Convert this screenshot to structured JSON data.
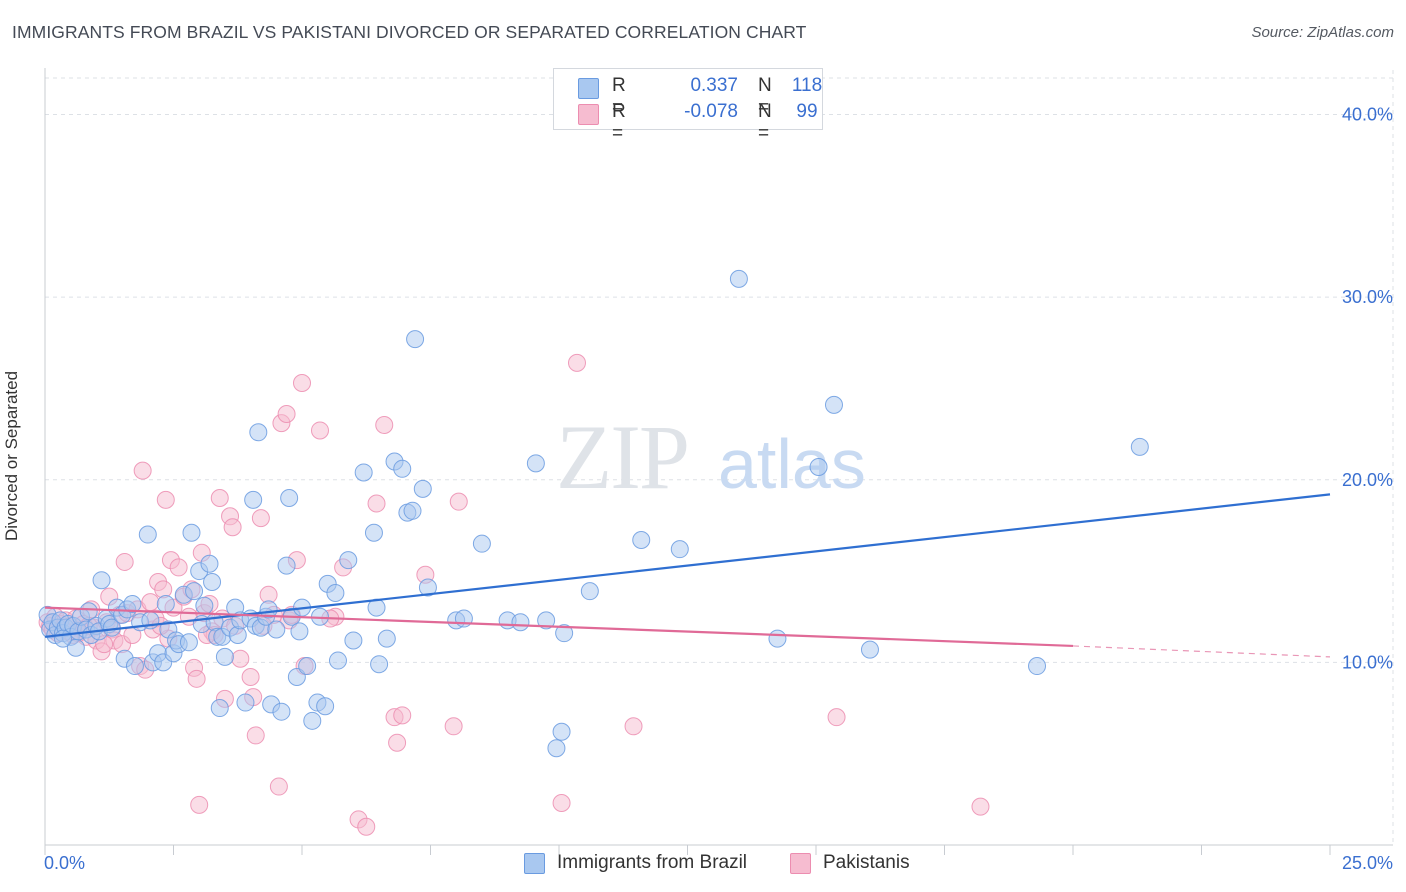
{
  "header": {
    "title": "IMMIGRANTS FROM BRAZIL VS PAKISTANI DIVORCED OR SEPARATED CORRELATION CHART",
    "source": "Source: ZipAtlas.com"
  },
  "watermark": {
    "zip": "ZIP",
    "atlas": "atlas"
  },
  "legend": {
    "rows": [
      {
        "r_label": "R =",
        "r_value": "0.337",
        "n_label": "N =",
        "n_value": "118"
      },
      {
        "r_label": "R =",
        "r_value": "-0.078",
        "n_label": "N =",
        "n_value": "99"
      }
    ]
  },
  "bottom_legend": {
    "brazil": "Immigrants from Brazil",
    "pakistani": "Pakistanis"
  },
  "colors": {
    "brazil_fill": "#a9c8f0",
    "brazil_stroke": "#6a9be0",
    "brazil_line": "#2f6fd1",
    "pakistani_fill": "#f6bcd0",
    "pakistani_stroke": "#ec8db0",
    "pakistani_line": "#e06a97",
    "axis_text": "#3a6fd0",
    "grid": "#dde1e6"
  },
  "chart_data": {
    "type": "scatter",
    "title": "IMMIGRANTS FROM BRAZIL VS PAKISTANI DIVORCED OR SEPARATED CORRELATION CHART",
    "xlabel": "",
    "ylabel": "Divorced or Separated",
    "xlim": [
      0,
      25
    ],
    "ylim": [
      0,
      42
    ],
    "x_tick_labels": [
      "0.0%",
      "25.0%"
    ],
    "y_ticks": [
      10,
      20,
      30,
      40
    ],
    "y_tick_labels": [
      "10.0%",
      "20.0%",
      "30.0%",
      "40.0%"
    ],
    "grid": true,
    "legend_position": "top-center",
    "series": [
      {
        "name": "Immigrants from Brazil",
        "r": 0.337,
        "n": 118,
        "trend": {
          "x0": 0,
          "y0": 11.4,
          "x1": 25,
          "y1": 19.2
        },
        "points": [
          [
            0.05,
            12.6
          ],
          [
            0.1,
            11.8
          ],
          [
            0.15,
            12.2
          ],
          [
            0.2,
            11.5
          ],
          [
            0.25,
            11.9
          ],
          [
            0.3,
            12.3
          ],
          [
            0.35,
            11.6
          ],
          [
            0.4,
            11.9
          ],
          [
            0.45,
            12.1
          ],
          [
            0.5,
            11.4
          ],
          [
            0.55,
            12.0
          ],
          [
            0.6,
            10.8
          ],
          [
            0.65,
            11.7
          ],
          [
            0.7,
            12.5
          ],
          [
            0.8,
            11.8
          ],
          [
            0.85,
            12.8
          ],
          [
            0.9,
            11.5
          ],
          [
            1.0,
            12.0
          ],
          [
            1.05,
            11.7
          ],
          [
            1.1,
            14.5
          ],
          [
            1.2,
            12.4
          ],
          [
            1.25,
            12.1
          ],
          [
            1.3,
            11.9
          ],
          [
            1.4,
            13.0
          ],
          [
            1.5,
            12.6
          ],
          [
            1.55,
            10.2
          ],
          [
            1.6,
            12.9
          ],
          [
            1.7,
            13.2
          ],
          [
            1.75,
            9.8
          ],
          [
            1.85,
            12.2
          ],
          [
            2.0,
            17.0
          ],
          [
            2.05,
            12.3
          ],
          [
            2.1,
            10.0
          ],
          [
            2.2,
            10.5
          ],
          [
            2.3,
            10.0
          ],
          [
            2.35,
            13.2
          ],
          [
            2.4,
            11.8
          ],
          [
            2.5,
            10.5
          ],
          [
            2.55,
            11.2
          ],
          [
            2.6,
            11.0
          ],
          [
            2.7,
            13.7
          ],
          [
            2.8,
            11.1
          ],
          [
            2.85,
            17.1
          ],
          [
            2.9,
            13.9
          ],
          [
            3.0,
            15.0
          ],
          [
            3.05,
            12.1
          ],
          [
            3.1,
            13.1
          ],
          [
            3.2,
            15.4
          ],
          [
            3.25,
            14.4
          ],
          [
            3.3,
            12.2
          ],
          [
            3.35,
            11.4
          ],
          [
            3.4,
            7.5
          ],
          [
            3.45,
            11.4
          ],
          [
            3.5,
            10.3
          ],
          [
            3.6,
            11.9
          ],
          [
            3.7,
            13.0
          ],
          [
            3.75,
            11.5
          ],
          [
            3.8,
            12.3
          ],
          [
            3.9,
            7.8
          ],
          [
            4.0,
            12.4
          ],
          [
            4.05,
            18.9
          ],
          [
            4.1,
            12.0
          ],
          [
            4.15,
            22.6
          ],
          [
            4.2,
            11.9
          ],
          [
            4.3,
            12.5
          ],
          [
            4.35,
            12.9
          ],
          [
            4.4,
            7.7
          ],
          [
            4.5,
            11.8
          ],
          [
            4.6,
            7.3
          ],
          [
            4.7,
            15.3
          ],
          [
            4.75,
            19.0
          ],
          [
            4.8,
            12.5
          ],
          [
            4.9,
            9.2
          ],
          [
            4.95,
            11.7
          ],
          [
            5.0,
            13.0
          ],
          [
            5.1,
            9.8
          ],
          [
            5.2,
            6.8
          ],
          [
            5.3,
            7.8
          ],
          [
            5.35,
            12.5
          ],
          [
            5.45,
            7.6
          ],
          [
            5.5,
            14.3
          ],
          [
            5.65,
            13.8
          ],
          [
            5.7,
            10.1
          ],
          [
            5.9,
            15.6
          ],
          [
            6.0,
            11.2
          ],
          [
            6.2,
            20.4
          ],
          [
            6.4,
            17.1
          ],
          [
            6.45,
            13.0
          ],
          [
            6.5,
            9.9
          ],
          [
            6.65,
            11.3
          ],
          [
            6.8,
            21.0
          ],
          [
            6.95,
            20.6
          ],
          [
            7.05,
            18.2
          ],
          [
            7.15,
            18.3
          ],
          [
            7.2,
            27.7
          ],
          [
            7.35,
            19.5
          ],
          [
            7.45,
            14.1
          ],
          [
            8.0,
            12.3
          ],
          [
            8.15,
            12.4
          ],
          [
            8.5,
            16.5
          ],
          [
            9.0,
            12.3
          ],
          [
            9.25,
            12.2
          ],
          [
            9.55,
            20.9
          ],
          [
            9.75,
            12.3
          ],
          [
            9.95,
            5.3
          ],
          [
            10.05,
            6.2
          ],
          [
            10.1,
            11.6
          ],
          [
            10.6,
            13.9
          ],
          [
            11.6,
            16.7
          ],
          [
            12.35,
            16.2
          ],
          [
            13.5,
            31.0
          ],
          [
            14.25,
            11.3
          ],
          [
            15.05,
            20.7
          ],
          [
            15.35,
            24.1
          ],
          [
            16.05,
            10.7
          ],
          [
            19.3,
            9.8
          ],
          [
            21.3,
            21.8
          ],
          [
            0.35,
            11.3
          ]
        ]
      },
      {
        "name": "Pakistanis",
        "r": -0.078,
        "n": 99,
        "trend": {
          "x0": 0,
          "y0": 13.0,
          "x1": 20,
          "y1": 10.9,
          "dash_x1": 25,
          "dash_y1": 10.3
        },
        "points": [
          [
            0.05,
            12.2
          ],
          [
            0.1,
            12.0
          ],
          [
            0.15,
            11.8
          ],
          [
            0.2,
            12.5
          ],
          [
            0.25,
            11.6
          ],
          [
            0.3,
            12.1
          ],
          [
            0.35,
            11.9
          ],
          [
            0.4,
            12.3
          ],
          [
            0.45,
            11.7
          ],
          [
            0.5,
            12.0
          ],
          [
            0.55,
            11.5
          ],
          [
            0.6,
            12.4
          ],
          [
            0.7,
            11.8
          ],
          [
            0.75,
            12.1
          ],
          [
            0.8,
            11.4
          ],
          [
            0.9,
            12.9
          ],
          [
            0.95,
            11.9
          ],
          [
            1.0,
            11.2
          ],
          [
            1.1,
            10.6
          ],
          [
            1.2,
            12.2
          ],
          [
            1.25,
            13.6
          ],
          [
            1.3,
            11.8
          ],
          [
            1.35,
            11.2
          ],
          [
            1.45,
            12.6
          ],
          [
            1.5,
            11.0
          ],
          [
            1.55,
            15.5
          ],
          [
            1.6,
            12.7
          ],
          [
            1.7,
            11.5
          ],
          [
            1.8,
            12.9
          ],
          [
            1.85,
            9.8
          ],
          [
            1.9,
            20.5
          ],
          [
            1.95,
            9.6
          ],
          [
            2.05,
            13.3
          ],
          [
            2.1,
            11.8
          ],
          [
            2.15,
            12.4
          ],
          [
            2.2,
            14.4
          ],
          [
            2.3,
            14.0
          ],
          [
            2.35,
            18.9
          ],
          [
            2.4,
            11.3
          ],
          [
            2.45,
            15.6
          ],
          [
            2.5,
            13.0
          ],
          [
            2.6,
            15.2
          ],
          [
            2.7,
            13.6
          ],
          [
            2.8,
            12.5
          ],
          [
            2.85,
            14.0
          ],
          [
            2.9,
            9.7
          ],
          [
            2.95,
            9.1
          ],
          [
            3.0,
            2.2
          ],
          [
            3.05,
            16.0
          ],
          [
            3.1,
            12.7
          ],
          [
            3.2,
            13.2
          ],
          [
            3.25,
            11.7
          ],
          [
            3.3,
            11.5
          ],
          [
            3.4,
            19.0
          ],
          [
            3.45,
            12.4
          ],
          [
            3.5,
            8.0
          ],
          [
            3.6,
            18.0
          ],
          [
            3.65,
            17.4
          ],
          [
            3.7,
            12.0
          ],
          [
            3.8,
            10.2
          ],
          [
            4.0,
            9.2
          ],
          [
            4.05,
            8.1
          ],
          [
            4.1,
            6.0
          ],
          [
            4.2,
            17.9
          ],
          [
            4.35,
            13.7
          ],
          [
            4.45,
            12.6
          ],
          [
            4.55,
            3.2
          ],
          [
            4.6,
            23.1
          ],
          [
            4.7,
            23.6
          ],
          [
            4.75,
            12.3
          ],
          [
            4.8,
            12.6
          ],
          [
            4.9,
            15.6
          ],
          [
            5.0,
            25.3
          ],
          [
            5.05,
            9.8
          ],
          [
            5.35,
            22.7
          ],
          [
            5.65,
            12.5
          ],
          [
            5.8,
            15.2
          ],
          [
            6.1,
            1.4
          ],
          [
            6.25,
            1.0
          ],
          [
            6.45,
            18.7
          ],
          [
            6.6,
            23.0
          ],
          [
            6.8,
            7.0
          ],
          [
            6.85,
            5.6
          ],
          [
            6.95,
            7.1
          ],
          [
            7.4,
            14.8
          ],
          [
            7.95,
            6.5
          ],
          [
            8.05,
            18.8
          ],
          [
            10.05,
            2.3
          ],
          [
            10.35,
            26.4
          ],
          [
            11.45,
            6.5
          ],
          [
            15.4,
            7.0
          ],
          [
            18.2,
            2.1
          ],
          [
            0.65,
            11.6
          ],
          [
            0.85,
            12.0
          ],
          [
            1.15,
            11.0
          ],
          [
            2.25,
            12.0
          ],
          [
            3.15,
            11.5
          ],
          [
            4.25,
            12.0
          ],
          [
            5.55,
            12.4
          ]
        ]
      }
    ]
  }
}
